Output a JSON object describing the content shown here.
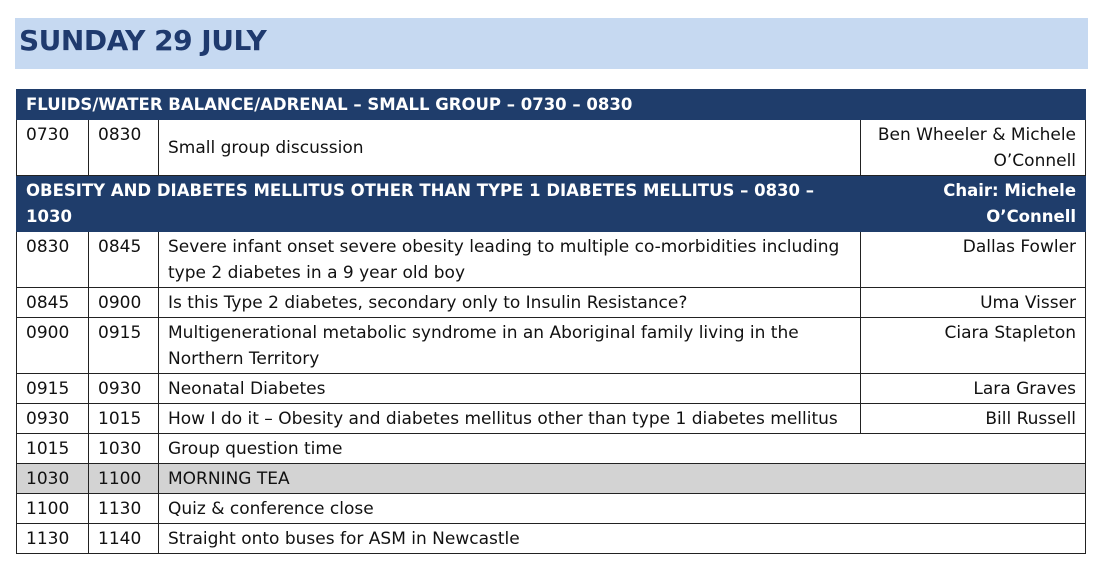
{
  "day_title": "SUNDAY 29 JULY",
  "sections": [
    {
      "title": "FLUIDS/WATER BALANCE/ADRENAL – SMALL GROUP – 0730 – 0830",
      "chair": "",
      "rows": [
        {
          "start": "0730",
          "end": "0830",
          "topic": "Small group discussion",
          "speaker": "Ben Wheeler & Michele O’Connell"
        }
      ]
    },
    {
      "title": "OBESITY AND DIABETES MELLITUS OTHER THAN TYPE 1 DIABETES MELLITUS – 0830 – 1030",
      "chair": "Chair: Michele O’Connell",
      "rows": [
        {
          "start": "0830",
          "end": "0845",
          "topic": "Severe infant onset severe obesity leading to multiple co-morbidities including type 2 diabetes in a 9 year old boy",
          "speaker": "Dallas Fowler"
        },
        {
          "start": "0845",
          "end": "0900",
          "topic": "Is this Type 2 diabetes, secondary only to Insulin Resistance?",
          "speaker": "Uma Visser"
        },
        {
          "start": "0900",
          "end": "0915",
          "topic": "Multigenerational metabolic syndrome in an Aboriginal family living in the Northern Territory",
          "speaker": "Ciara Stapleton"
        },
        {
          "start": "0915",
          "end": "0930",
          "topic": "Neonatal Diabetes",
          "speaker": "Lara Graves"
        },
        {
          "start": "0930",
          "end": "1015",
          "topic": "How I do it – Obesity and diabetes mellitus other than type 1 diabetes mellitus",
          "speaker": "Bill Russell"
        }
      ]
    }
  ],
  "closing_rows": [
    {
      "start": "1015",
      "end": "1030",
      "topic": "Group question time"
    },
    {
      "start": "1030",
      "end": "1100",
      "topic": "MORNING TEA"
    },
    {
      "start": "1100",
      "end": "1130",
      "topic": "Quiz & conference close"
    },
    {
      "start": "1130",
      "end": "1140",
      "topic": "Straight onto buses for ASM in Newcastle"
    }
  ]
}
